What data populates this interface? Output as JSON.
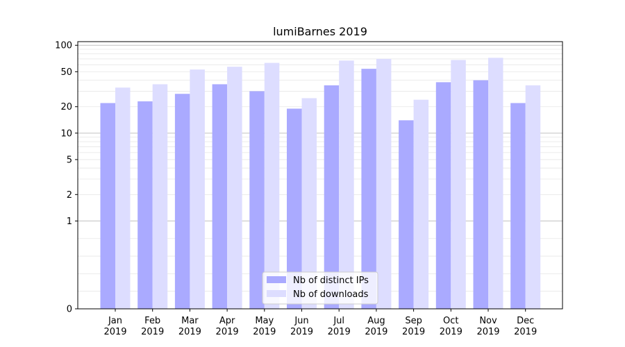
{
  "chart_data": {
    "type": "bar",
    "title": "lumiBarnes 2019",
    "xlabel": "",
    "ylabel": "",
    "yscale": "symlog",
    "ylim": [
      0,
      110
    ],
    "yticks": [
      0,
      1,
      2,
      5,
      10,
      20,
      50,
      100
    ],
    "categories": [
      [
        "Jan",
        "2019"
      ],
      [
        "Feb",
        "2019"
      ],
      [
        "Mar",
        "2019"
      ],
      [
        "Apr",
        "2019"
      ],
      [
        "May",
        "2019"
      ],
      [
        "Jun",
        "2019"
      ],
      [
        "Jul",
        "2019"
      ],
      [
        "Aug",
        "2019"
      ],
      [
        "Sep",
        "2019"
      ],
      [
        "Oct",
        "2019"
      ],
      [
        "Nov",
        "2019"
      ],
      [
        "Dec",
        "2019"
      ]
    ],
    "series": [
      {
        "name": "Nb of distinct IPs",
        "color": "#aaaaff",
        "values": [
          22,
          23,
          28,
          36,
          30,
          19,
          35,
          54,
          14,
          38,
          40,
          22
        ]
      },
      {
        "name": "Nb of downloads",
        "color": "#ddddff",
        "values": [
          33,
          36,
          53,
          57,
          63,
          25,
          67,
          70,
          24,
          68,
          72,
          35
        ]
      }
    ],
    "legend_position": "bottom-center",
    "grid": true
  }
}
